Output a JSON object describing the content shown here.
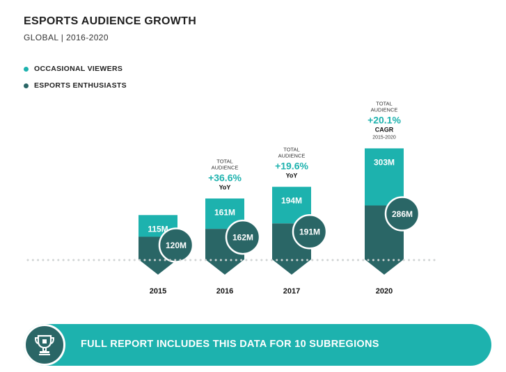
{
  "title": "ESPORTS AUDIENCE GROWTH",
  "subtitle": "GLOBAL | 2016-2020",
  "colors": {
    "occasional": "#1db2ae",
    "enthusiasts": "#2a6666",
    "growth_text": "#1db2ae",
    "banner": "#1db2ae"
  },
  "chart_data": {
    "type": "bar",
    "stacked": true,
    "categories": [
      "2015",
      "2016",
      "2017",
      "2020"
    ],
    "series": [
      {
        "name": "OCCASIONAL VIEWERS",
        "values": [
          115,
          161,
          194,
          303
        ],
        "labels": [
          "115M",
          "161M",
          "194M",
          "303M"
        ]
      },
      {
        "name": "ESPORTS ENTHUSIASTS",
        "values": [
          120,
          162,
          191,
          286
        ],
        "labels": [
          "120M",
          "162M",
          "191M",
          "286M"
        ]
      }
    ],
    "annotations": [
      {
        "category": "2016",
        "line1": "TOTAL",
        "line2": "AUDIENCE",
        "value": "+36.6%",
        "label": "YoY",
        "sublabel": ""
      },
      {
        "category": "2017",
        "line1": "TOTAL",
        "line2": "AUDIENCE",
        "value": "+19.6%",
        "label": "YoY",
        "sublabel": ""
      },
      {
        "category": "2020",
        "line1": "TOTAL",
        "line2": "AUDIENCE",
        "value": "+20.1%",
        "label": "CAGR",
        "sublabel": "2015-2020"
      }
    ],
    "legend_position": "top-left",
    "grid": false
  },
  "banner": {
    "icon": "trophy-icon",
    "text": "FULL REPORT INCLUDES THIS DATA FOR 10 SUBREGIONS"
  }
}
